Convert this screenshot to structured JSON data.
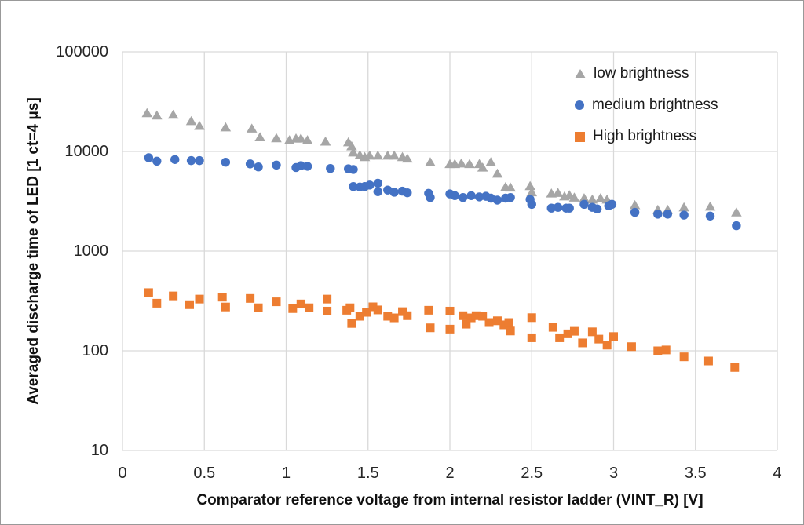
{
  "figure": {
    "background": "#FFFFFF",
    "border_color": "#999999"
  },
  "chart_data": {
    "type": "scatter",
    "title": "",
    "xlabel": "Comparator reference voltage from internal resistor ladder (VINT_R) [V]",
    "ylabel": "Averaged discharge time of LED [1 ct=4 μs]",
    "xlim": [
      0,
      4
    ],
    "ylim": [
      10,
      100000
    ],
    "y_scale": "log",
    "grid": true,
    "gridline_color": "#D9D9D9",
    "x_tick_labels": [
      "0",
      "0.5",
      "1",
      "1.5",
      "2",
      "2.5",
      "3",
      "3.5",
      "4"
    ],
    "x_ticks": [
      0,
      0.5,
      1,
      1.5,
      2,
      2.5,
      3,
      3.5,
      4
    ],
    "y_tick_labels": [
      "10",
      "100",
      "1000",
      "10000",
      "100000"
    ],
    "y_ticks": [
      10,
      100,
      1000,
      10000,
      100000
    ],
    "legend_position": "top-right-inside",
    "series": [
      {
        "name": "low brightness",
        "marker": "triangle",
        "color": "#A6A6A6",
        "points": [
          [
            0.15,
            24300
          ],
          [
            0.21,
            23000
          ],
          [
            0.31,
            23400
          ],
          [
            0.42,
            20200
          ],
          [
            0.47,
            18100
          ],
          [
            0.63,
            17500
          ],
          [
            0.79,
            17000
          ],
          [
            0.84,
            13900
          ],
          [
            0.94,
            13600
          ],
          [
            1.02,
            13000
          ],
          [
            1.06,
            13500
          ],
          [
            1.09,
            13500
          ],
          [
            1.13,
            13000
          ],
          [
            1.24,
            12600
          ],
          [
            1.38,
            12400
          ],
          [
            1.4,
            11300
          ],
          [
            1.41,
            9800
          ],
          [
            1.45,
            9200
          ],
          [
            1.48,
            8800
          ],
          [
            1.51,
            9100
          ],
          [
            1.56,
            9100
          ],
          [
            1.62,
            9100
          ],
          [
            1.66,
            9100
          ],
          [
            1.71,
            8800
          ],
          [
            1.74,
            8500
          ],
          [
            1.88,
            7800
          ],
          [
            2.0,
            7500
          ],
          [
            2.03,
            7500
          ],
          [
            2.07,
            7600
          ],
          [
            2.12,
            7500
          ],
          [
            2.18,
            7500
          ],
          [
            2.2,
            6900
          ],
          [
            2.25,
            7800
          ],
          [
            2.29,
            6000
          ],
          [
            2.34,
            4400
          ],
          [
            2.37,
            4350
          ],
          [
            2.49,
            4500
          ],
          [
            2.5,
            3900
          ],
          [
            2.62,
            3800
          ],
          [
            2.66,
            3850
          ],
          [
            2.7,
            3550
          ],
          [
            2.73,
            3650
          ],
          [
            2.76,
            3450
          ],
          [
            2.82,
            3400
          ],
          [
            2.87,
            3300
          ],
          [
            2.92,
            3400
          ],
          [
            2.96,
            3300
          ],
          [
            3.13,
            2900
          ],
          [
            3.27,
            2600
          ],
          [
            3.33,
            2600
          ],
          [
            3.43,
            2750
          ],
          [
            3.59,
            2800
          ],
          [
            3.75,
            2450
          ]
        ]
      },
      {
        "name": "medium brightness",
        "marker": "circle",
        "color": "#4472C4",
        "points": [
          [
            0.16,
            8650
          ],
          [
            0.21,
            8000
          ],
          [
            0.32,
            8300
          ],
          [
            0.42,
            8100
          ],
          [
            0.47,
            8100
          ],
          [
            0.63,
            7800
          ],
          [
            0.78,
            7500
          ],
          [
            0.83,
            7000
          ],
          [
            0.94,
            7300
          ],
          [
            1.06,
            6900
          ],
          [
            1.09,
            7200
          ],
          [
            1.13,
            7100
          ],
          [
            1.27,
            6750
          ],
          [
            1.38,
            6700
          ],
          [
            1.41,
            6600
          ],
          [
            1.41,
            4450
          ],
          [
            1.45,
            4400
          ],
          [
            1.48,
            4450
          ],
          [
            1.51,
            4600
          ],
          [
            1.56,
            4800
          ],
          [
            1.56,
            3950
          ],
          [
            1.62,
            4100
          ],
          [
            1.66,
            3900
          ],
          [
            1.71,
            4000
          ],
          [
            1.74,
            3850
          ],
          [
            1.87,
            3800
          ],
          [
            1.88,
            3450
          ],
          [
            2.0,
            3750
          ],
          [
            2.03,
            3600
          ],
          [
            2.08,
            3450
          ],
          [
            2.13,
            3600
          ],
          [
            2.18,
            3500
          ],
          [
            2.22,
            3550
          ],
          [
            2.25,
            3400
          ],
          [
            2.29,
            3250
          ],
          [
            2.34,
            3400
          ],
          [
            2.37,
            3450
          ],
          [
            2.49,
            3300
          ],
          [
            2.5,
            2950
          ],
          [
            2.62,
            2700
          ],
          [
            2.66,
            2750
          ],
          [
            2.71,
            2700
          ],
          [
            2.73,
            2700
          ],
          [
            2.82,
            2950
          ],
          [
            2.87,
            2750
          ],
          [
            2.9,
            2650
          ],
          [
            2.97,
            2850
          ],
          [
            2.99,
            2950
          ],
          [
            3.13,
            2450
          ],
          [
            3.27,
            2350
          ],
          [
            3.33,
            2350
          ],
          [
            3.43,
            2300
          ],
          [
            3.59,
            2250
          ],
          [
            3.75,
            1800
          ]
        ]
      },
      {
        "name": "High brightness",
        "marker": "square",
        "color": "#ED7D31",
        "points": [
          [
            0.16,
            383
          ],
          [
            0.21,
            300
          ],
          [
            0.31,
            355
          ],
          [
            0.41,
            290
          ],
          [
            0.47,
            330
          ],
          [
            0.61,
            345
          ],
          [
            0.63,
            275
          ],
          [
            0.78,
            335
          ],
          [
            0.83,
            270
          ],
          [
            0.94,
            310
          ],
          [
            1.04,
            265
          ],
          [
            1.09,
            295
          ],
          [
            1.14,
            270
          ],
          [
            1.25,
            330
          ],
          [
            1.25,
            250
          ],
          [
            1.37,
            255
          ],
          [
            1.39,
            270
          ],
          [
            1.4,
            188
          ],
          [
            1.45,
            222
          ],
          [
            1.49,
            243
          ],
          [
            1.53,
            276
          ],
          [
            1.56,
            257
          ],
          [
            1.62,
            222
          ],
          [
            1.66,
            214
          ],
          [
            1.71,
            247
          ],
          [
            1.74,
            225
          ],
          [
            1.87,
            255
          ],
          [
            1.88,
            170
          ],
          [
            2.0,
            250
          ],
          [
            2.0,
            165
          ],
          [
            2.08,
            225
          ],
          [
            2.1,
            185
          ],
          [
            2.13,
            214
          ],
          [
            2.16,
            225
          ],
          [
            2.2,
            222
          ],
          [
            2.24,
            192
          ],
          [
            2.29,
            200
          ],
          [
            2.33,
            182
          ],
          [
            2.36,
            192
          ],
          [
            2.37,
            158
          ],
          [
            2.5,
            215
          ],
          [
            2.5,
            135
          ],
          [
            2.63,
            172
          ],
          [
            2.67,
            135
          ],
          [
            2.72,
            148
          ],
          [
            2.76,
            157
          ],
          [
            2.81,
            120
          ],
          [
            2.87,
            155
          ],
          [
            2.91,
            131
          ],
          [
            2.96,
            114
          ],
          [
            3.0,
            139
          ],
          [
            3.11,
            110
          ],
          [
            3.27,
            100
          ],
          [
            3.32,
            102
          ],
          [
            3.43,
            87
          ],
          [
            3.58,
            79
          ],
          [
            3.74,
            68
          ]
        ]
      }
    ]
  }
}
